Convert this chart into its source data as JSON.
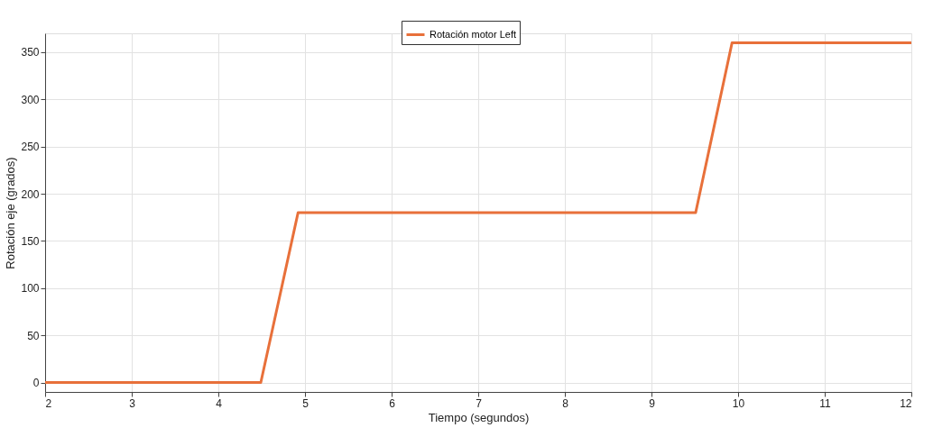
{
  "chart_data": {
    "type": "line",
    "xlabel": "Tiempo (segundos)",
    "ylabel": "Rotación eje (grados)",
    "x": [
      2,
      4.49,
      4.92,
      9.51,
      9.93,
      12
    ],
    "series": [
      {
        "name": "Rotación motor Left",
        "color": "#e8703a",
        "values": [
          0,
          0,
          180,
          180,
          360,
          360
        ]
      }
    ],
    "xlim": [
      2,
      12
    ],
    "xticks": [
      2,
      3,
      4,
      5,
      6,
      7,
      8,
      9,
      10,
      11,
      12
    ],
    "ylim": [
      -10,
      370
    ],
    "yticks": [
      0,
      50,
      100,
      150,
      200,
      250,
      300,
      350
    ],
    "grid": true,
    "legend": "top",
    "line_style": "solid",
    "marker": "none"
  }
}
